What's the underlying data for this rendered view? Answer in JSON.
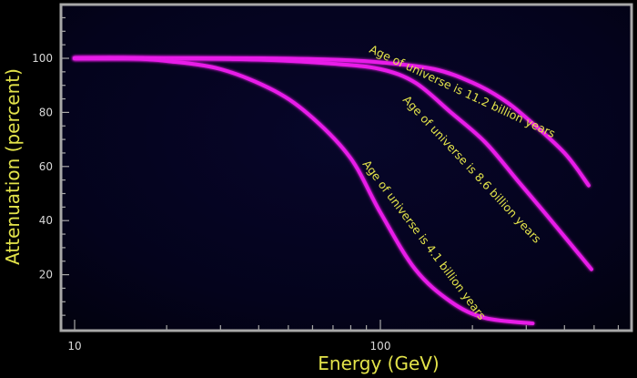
{
  "chart_data": {
    "type": "line",
    "title": "",
    "xlabel": "Energy (GeV)",
    "ylabel": "Attenuation (percent)",
    "x_scale": "log",
    "xlim": [
      8.9,
      750
    ],
    "ylim": [
      0,
      120
    ],
    "x_tick_labels": [
      "10",
      "100"
    ],
    "y_tick_labels": [
      "20",
      "40",
      "60",
      "80",
      "100"
    ],
    "y_ticks": [
      20,
      40,
      60,
      80,
      100
    ],
    "grid": false,
    "legend": null,
    "colors": {
      "background": "#04031a",
      "frame": "#a8a8a8",
      "curve": "#e81ee8",
      "text": "#e3e34a",
      "tick_text": "#d8d8d8"
    },
    "series": [
      {
        "name": "Age of universe is 11.2 billion years",
        "x": [
          10,
          20,
          40,
          70,
          100,
          150,
          200,
          250,
          300,
          400,
          480
        ],
        "y": [
          100,
          100,
          100,
          99.5,
          98.5,
          96,
          91,
          85,
          78,
          65,
          53
        ]
      },
      {
        "name": "Age of universe is 8.6 billion years",
        "x": [
          10,
          20,
          40,
          70,
          100,
          130,
          170,
          220,
          280,
          350,
          490
        ],
        "y": [
          100,
          100,
          99.5,
          98,
          96,
          91,
          80,
          69,
          55,
          42,
          22
        ]
      },
      {
        "name": "Age of universe is 4.1 billion years",
        "x": [
          10,
          15,
          20,
          30,
          45,
          60,
          80,
          100,
          130,
          170,
          220,
          315
        ],
        "y": [
          100,
          100,
          99,
          96,
          88,
          78,
          63,
          43,
          22,
          10,
          4,
          2
        ]
      }
    ],
    "annotations": [
      "Age of universe is 11.2 billion years",
      "Age of universe is 8.6 billion years",
      "Age of universe is 4.1 billion years"
    ]
  }
}
